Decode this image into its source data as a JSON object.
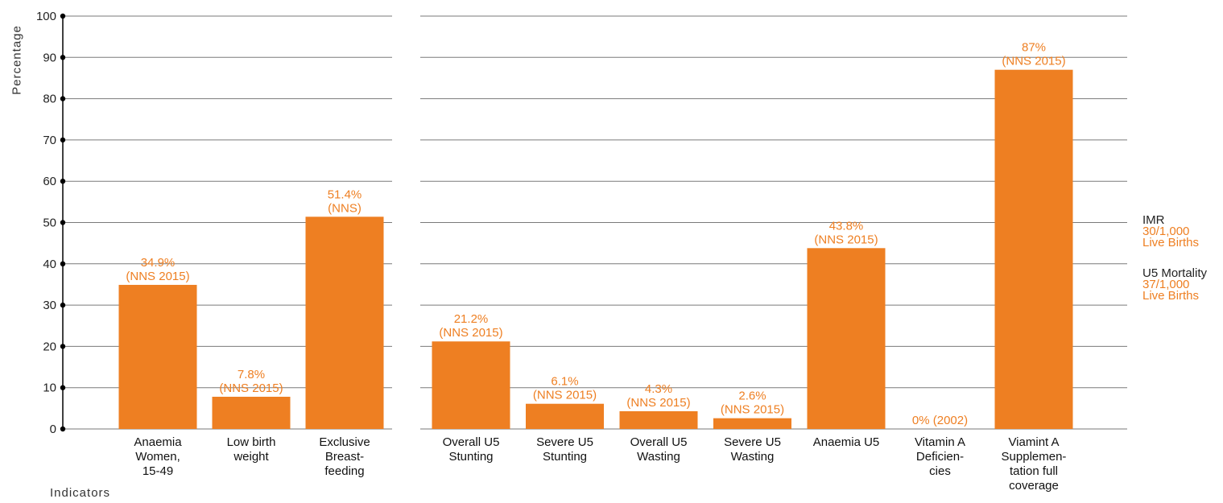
{
  "chart_data": {
    "type": "bar",
    "xlabel": "Indicators",
    "ylabel": "Percentage",
    "ylim": [
      0,
      100
    ],
    "yticks": [
      "0",
      "10",
      "20",
      "30",
      "40",
      "50",
      "60",
      "70",
      "80",
      "90",
      "100"
    ],
    "bar_color": "#ee7f22",
    "label_color": "#ee7f22",
    "grid": true,
    "groups": [
      {
        "categories": [
          [
            "Anaemia",
            "Women,",
            "15-49"
          ],
          [
            "Low birth",
            "weight"
          ],
          [
            "Exclusive",
            "Breast-",
            "feeding"
          ]
        ],
        "values": [
          34.9,
          7.8,
          51.4
        ],
        "labels": [
          [
            "34.9%",
            "(NNS 2015)"
          ],
          [
            "7.8%",
            "(NNS 2015)"
          ],
          [
            "51.4%",
            "(NNS)"
          ]
        ]
      },
      {
        "categories": [
          [
            "Overall U5",
            "Stunting"
          ],
          [
            "Severe U5",
            "Stunting"
          ],
          [
            "Overall U5",
            "Wasting"
          ],
          [
            "Severe U5",
            "Wasting"
          ],
          [
            "Anaemia U5"
          ],
          [
            "Vitamin A",
            "Deficien-",
            "cies"
          ],
          [
            "Viamint A",
            "Supplemen-",
            "tation full",
            "coverage"
          ]
        ],
        "values": [
          21.2,
          6.1,
          4.3,
          2.6,
          43.8,
          0,
          87
        ],
        "labels": [
          [
            "21.2%",
            "(NNS 2015)"
          ],
          [
            "6.1%",
            "(NNS 2015)"
          ],
          [
            "4.3%",
            "(NNS 2015)"
          ],
          [
            "2.6%",
            "(NNS 2015)"
          ],
          [
            "43.8%",
            "(NNS 2015)"
          ],
          [
            "0% (2002)"
          ],
          [
            "87%",
            "(NNS 2015)"
          ]
        ]
      }
    ]
  },
  "side_notes": {
    "imr": {
      "title": "IMR",
      "value_line1": "30/1,000",
      "value_line2": "Live Births"
    },
    "u5_mortality": {
      "title": "U5 Mortality",
      "value_line1": "37/1,000",
      "value_line2": "Live Births"
    }
  }
}
